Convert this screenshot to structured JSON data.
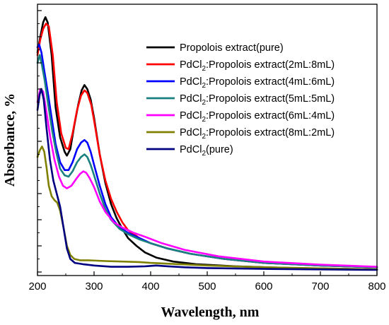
{
  "chart_data": {
    "type": "line",
    "xlabel": "Wavelength,   nm",
    "ylabel": "Absorbance,   %",
    "xlim": [
      200,
      800
    ],
    "ylim": [
      0,
      1
    ],
    "x_ticks": [
      200,
      300,
      400,
      500,
      600,
      700,
      800
    ],
    "y_tick_labels_shown": false,
    "grid": false,
    "legend_position": "top-right",
    "series": [
      {
        "name": "Propolois extract(pure)",
        "legend": {
          "pre": "Propolois extract(pure)",
          "sub": "",
          "post": ""
        },
        "color": "#000000",
        "points": [
          [
            200,
            0.84
          ],
          [
            205,
            0.9
          ],
          [
            210,
            0.955
          ],
          [
            214,
            0.975
          ],
          [
            218,
            0.955
          ],
          [
            225,
            0.83
          ],
          [
            232,
            0.63
          ],
          [
            240,
            0.515
          ],
          [
            248,
            0.46
          ],
          [
            252,
            0.445
          ],
          [
            258,
            0.47
          ],
          [
            265,
            0.56
          ],
          [
            272,
            0.64
          ],
          [
            278,
            0.695
          ],
          [
            283,
            0.715
          ],
          [
            288,
            0.7
          ],
          [
            294,
            0.66
          ],
          [
            300,
            0.59
          ],
          [
            310,
            0.45
          ],
          [
            320,
            0.34
          ],
          [
            330,
            0.26
          ],
          [
            340,
            0.205
          ],
          [
            350,
            0.165
          ],
          [
            360,
            0.13
          ],
          [
            375,
            0.1
          ],
          [
            390,
            0.075
          ],
          [
            410,
            0.055
          ],
          [
            440,
            0.04
          ],
          [
            480,
            0.03
          ],
          [
            550,
            0.022
          ],
          [
            650,
            0.015
          ],
          [
            800,
            0.01
          ]
        ]
      },
      {
        "name": "PdCl2:Propolois extract(2mL:8mL)",
        "legend": {
          "pre": "PdCl",
          "sub": "2",
          "post": ":Propolois extract(2mL:8mL)"
        },
        "color": "#ff0000",
        "points": [
          [
            200,
            0.83
          ],
          [
            205,
            0.89
          ],
          [
            210,
            0.93
          ],
          [
            215,
            0.95
          ],
          [
            220,
            0.94
          ],
          [
            227,
            0.83
          ],
          [
            234,
            0.65
          ],
          [
            242,
            0.53
          ],
          [
            250,
            0.475
          ],
          [
            255,
            0.47
          ],
          [
            262,
            0.53
          ],
          [
            270,
            0.62
          ],
          [
            277,
            0.675
          ],
          [
            283,
            0.695
          ],
          [
            288,
            0.685
          ],
          [
            295,
            0.64
          ],
          [
            300,
            0.58
          ],
          [
            310,
            0.45
          ],
          [
            320,
            0.35
          ],
          [
            330,
            0.28
          ],
          [
            340,
            0.23
          ],
          [
            350,
            0.19
          ],
          [
            360,
            0.16
          ],
          [
            380,
            0.13
          ],
          [
            400,
            0.11
          ],
          [
            430,
            0.09
          ],
          [
            470,
            0.07
          ],
          [
            530,
            0.05
          ],
          [
            600,
            0.035
          ],
          [
            700,
            0.025
          ],
          [
            800,
            0.018
          ]
        ]
      },
      {
        "name": "PdCl2:Propolois extract(4mL:6mL)",
        "legend": {
          "pre": "PdCl",
          "sub": "2",
          "post": ":Propolois extract(4mL:6mL)"
        },
        "color": "#0000ff",
        "points": [
          [
            200,
            0.86
          ],
          [
            203,
            0.87
          ],
          [
            207,
            0.84
          ],
          [
            212,
            0.77
          ],
          [
            218,
            0.69
          ],
          [
            225,
            0.59
          ],
          [
            232,
            0.49
          ],
          [
            240,
            0.42
          ],
          [
            248,
            0.39
          ],
          [
            255,
            0.39
          ],
          [
            262,
            0.42
          ],
          [
            270,
            0.47
          ],
          [
            277,
            0.495
          ],
          [
            283,
            0.505
          ],
          [
            288,
            0.495
          ],
          [
            294,
            0.46
          ],
          [
            300,
            0.41
          ],
          [
            310,
            0.33
          ],
          [
            320,
            0.26
          ],
          [
            330,
            0.21
          ],
          [
            345,
            0.17
          ],
          [
            360,
            0.15
          ],
          [
            380,
            0.13
          ],
          [
            400,
            0.11
          ],
          [
            430,
            0.09
          ],
          [
            470,
            0.07
          ],
          [
            530,
            0.05
          ],
          [
            600,
            0.035
          ],
          [
            700,
            0.025
          ],
          [
            800,
            0.018
          ]
        ]
      },
      {
        "name": "PdCl2:Propolois extract(5mL:5mL)",
        "legend": {
          "pre": "PdCl",
          "sub": "2",
          "post": ":Propolois extract(5mL:5mL)"
        },
        "color": "#1a8080",
        "points": [
          [
            200,
            0.8
          ],
          [
            204,
            0.83
          ],
          [
            208,
            0.79
          ],
          [
            213,
            0.73
          ],
          [
            219,
            0.64
          ],
          [
            226,
            0.54
          ],
          [
            233,
            0.46
          ],
          [
            240,
            0.395
          ],
          [
            248,
            0.37
          ],
          [
            255,
            0.365
          ],
          [
            262,
            0.385
          ],
          [
            270,
            0.42
          ],
          [
            277,
            0.44
          ],
          [
            283,
            0.45
          ],
          [
            288,
            0.44
          ],
          [
            294,
            0.41
          ],
          [
            300,
            0.37
          ],
          [
            310,
            0.3
          ],
          [
            320,
            0.24
          ],
          [
            330,
            0.2
          ],
          [
            345,
            0.165
          ],
          [
            360,
            0.145
          ],
          [
            380,
            0.125
          ],
          [
            400,
            0.11
          ],
          [
            430,
            0.09
          ],
          [
            470,
            0.07
          ],
          [
            530,
            0.05
          ],
          [
            600,
            0.035
          ],
          [
            700,
            0.025
          ],
          [
            800,
            0.018
          ]
        ]
      },
      {
        "name": "PdCl2:Propolois extract(6mL:4mL)",
        "legend": {
          "pre": "PdCl",
          "sub": "2",
          "post": ":Propolois extract(6mL:4mL)"
        },
        "color": "#ff00ff",
        "points": [
          [
            200,
            0.65
          ],
          [
            205,
            0.7
          ],
          [
            210,
            0.69
          ],
          [
            216,
            0.61
          ],
          [
            223,
            0.51
          ],
          [
            230,
            0.43
          ],
          [
            238,
            0.365
          ],
          [
            245,
            0.33
          ],
          [
            252,
            0.32
          ],
          [
            260,
            0.33
          ],
          [
            268,
            0.355
          ],
          [
            275,
            0.375
          ],
          [
            281,
            0.385
          ],
          [
            286,
            0.38
          ],
          [
            292,
            0.36
          ],
          [
            300,
            0.325
          ],
          [
            310,
            0.27
          ],
          [
            320,
            0.23
          ],
          [
            335,
            0.19
          ],
          [
            350,
            0.17
          ],
          [
            370,
            0.15
          ],
          [
            390,
            0.135
          ],
          [
            420,
            0.11
          ],
          [
            460,
            0.085
          ],
          [
            520,
            0.06
          ],
          [
            600,
            0.04
          ],
          [
            700,
            0.028
          ],
          [
            800,
            0.02
          ]
        ]
      },
      {
        "name": "PdCl2:Propolois extract(8mL:2mL)",
        "legend": {
          "pre": "PdCl",
          "sub": "2",
          "post": ":Propolois extract(8mL:2mL)"
        },
        "color": "#808000",
        "points": [
          [
            200,
            0.44
          ],
          [
            204,
            0.465
          ],
          [
            208,
            0.48
          ],
          [
            212,
            0.46
          ],
          [
            216,
            0.4
          ],
          [
            220,
            0.33
          ],
          [
            225,
            0.29
          ],
          [
            230,
            0.275
          ],
          [
            235,
            0.265
          ],
          [
            240,
            0.235
          ],
          [
            246,
            0.17
          ],
          [
            252,
            0.1
          ],
          [
            258,
            0.065
          ],
          [
            265,
            0.05
          ],
          [
            275,
            0.045
          ],
          [
            290,
            0.045
          ],
          [
            320,
            0.042
          ],
          [
            350,
            0.04
          ],
          [
            380,
            0.038
          ],
          [
            400,
            0.035
          ],
          [
            450,
            0.03
          ],
          [
            500,
            0.025
          ],
          [
            600,
            0.018
          ],
          [
            700,
            0.014
          ],
          [
            800,
            0.01
          ]
        ]
      },
      {
        "name": "PdCl2(pure)",
        "legend": {
          "pre": "PdCl",
          "sub": "2",
          "post": "(pure)"
        },
        "color": "#000080",
        "points": [
          [
            200,
            0.62
          ],
          [
            204,
            0.68
          ],
          [
            207,
            0.7
          ],
          [
            211,
            0.66
          ],
          [
            216,
            0.55
          ],
          [
            222,
            0.43
          ],
          [
            228,
            0.35
          ],
          [
            234,
            0.3
          ],
          [
            240,
            0.25
          ],
          [
            246,
            0.17
          ],
          [
            252,
            0.09
          ],
          [
            258,
            0.05
          ],
          [
            266,
            0.035
          ],
          [
            280,
            0.03
          ],
          [
            300,
            0.025
          ],
          [
            330,
            0.02
          ],
          [
            360,
            0.02
          ],
          [
            390,
            0.022
          ],
          [
            410,
            0.025
          ],
          [
            430,
            0.022
          ],
          [
            460,
            0.018
          ],
          [
            500,
            0.015
          ],
          [
            600,
            0.012
          ],
          [
            700,
            0.01
          ],
          [
            800,
            0.008
          ]
        ]
      }
    ]
  }
}
